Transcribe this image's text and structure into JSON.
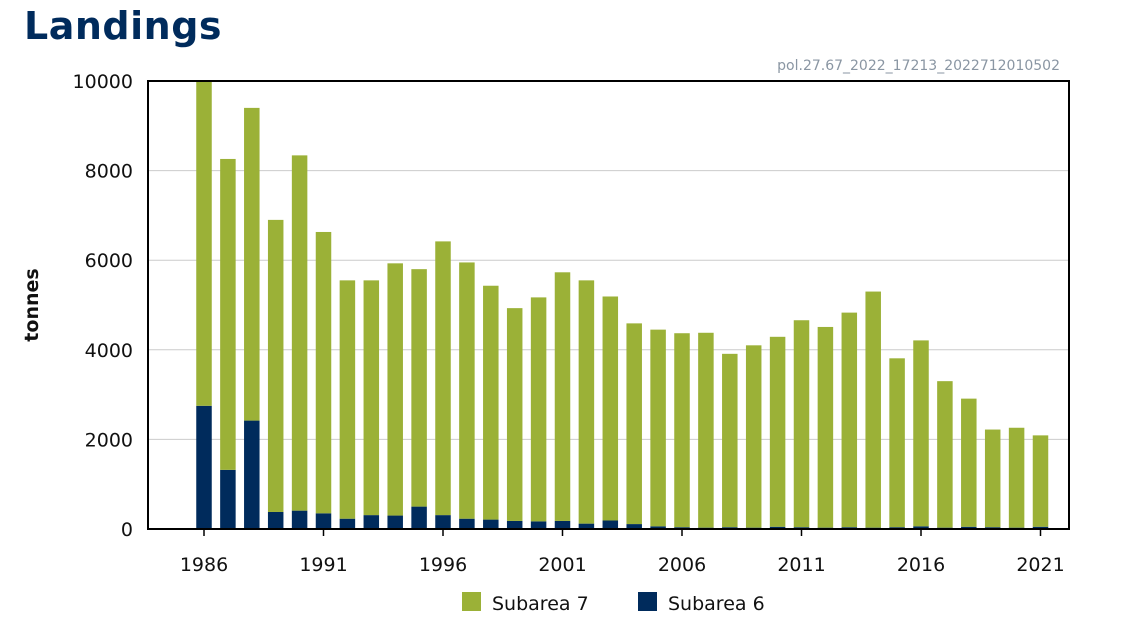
{
  "page": {
    "title": "Landings",
    "source_id": "pol.27.67_2022_17213_2022712010502"
  },
  "chart_data": {
    "type": "bar",
    "stacked": true,
    "title": "",
    "xlabel": "",
    "ylabel": "tonnes",
    "ylim": [
      0,
      10000
    ],
    "yticks": [
      0,
      2000,
      4000,
      6000,
      8000,
      10000
    ],
    "xticks": [
      1986,
      1991,
      1996,
      2001,
      2006,
      2011,
      2016,
      2021
    ],
    "grid": true,
    "legend_position": "bottom",
    "categories": [
      1986,
      1987,
      1988,
      1989,
      1990,
      1991,
      1992,
      1993,
      1994,
      1995,
      1996,
      1997,
      1998,
      1999,
      2000,
      2001,
      2002,
      2003,
      2004,
      2005,
      2006,
      2007,
      2008,
      2009,
      2010,
      2011,
      2012,
      2013,
      2014,
      2015,
      2016,
      2017,
      2018,
      2019,
      2020,
      2021
    ],
    "series": [
      {
        "name": "Subarea 6",
        "color": "#002b5c",
        "values": [
          2750,
          1320,
          2420,
          380,
          410,
          350,
          230,
          310,
          300,
          500,
          310,
          230,
          210,
          180,
          170,
          180,
          120,
          190,
          110,
          60,
          40,
          30,
          40,
          30,
          50,
          40,
          30,
          40,
          30,
          40,
          60,
          30,
          50,
          40,
          30,
          50
        ]
      },
      {
        "name": "Subarea 7",
        "color": "#9bb137",
        "values": [
          7270,
          6940,
          6980,
          6520,
          7930,
          6280,
          5320,
          5240,
          5630,
          5300,
          6110,
          5720,
          5220,
          4750,
          5000,
          5550,
          5430,
          5000,
          4480,
          4390,
          4330,
          4350,
          3870,
          4070,
          4240,
          4620,
          4480,
          4790,
          5270,
          3770,
          4150,
          3270,
          2860,
          2180,
          2230,
          2040
        ]
      }
    ]
  }
}
